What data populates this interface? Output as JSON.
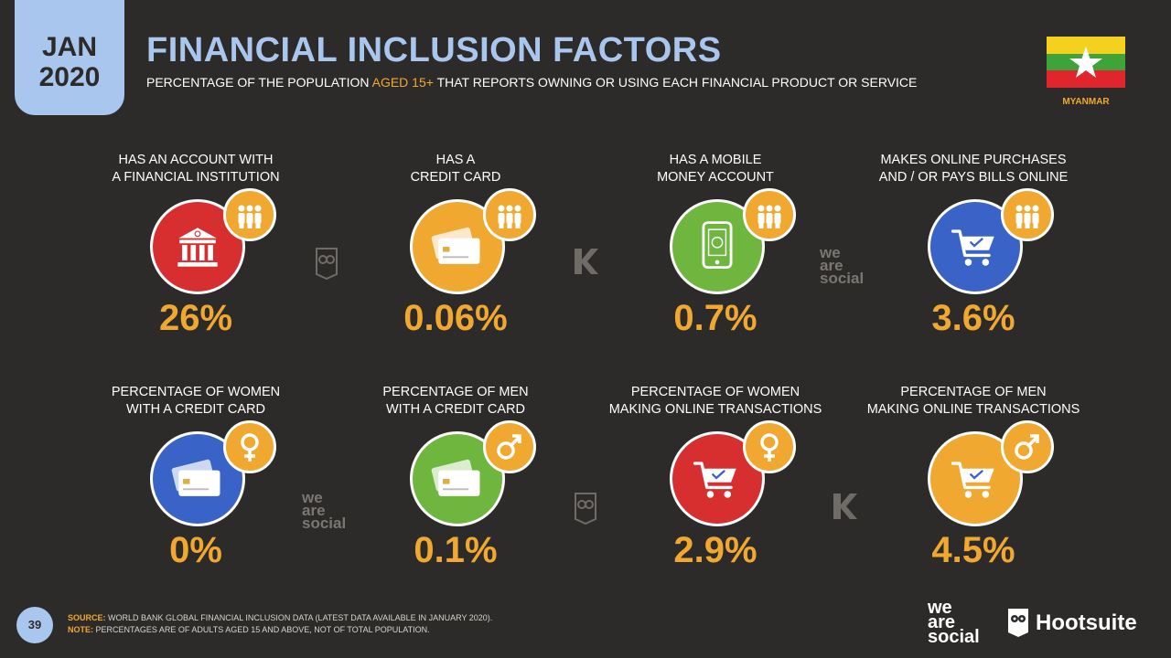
{
  "header": {
    "month": "JAN",
    "year": "2020",
    "title": "FINANCIAL INCLUSION FACTORS",
    "subtitle_pre": "PERCENTAGE OF THE POPULATION ",
    "subtitle_highlight": "AGED 15+",
    "subtitle_post": " THAT REPORTS OWNING OR USING EACH FINANCIAL PRODUCT OR SERVICE",
    "country": "MYANMAR"
  },
  "colors": {
    "background": "#2d2b29",
    "accent_blue": "#a9c6ef",
    "accent_orange": "#f0a830",
    "red": "#d72f2f",
    "orange": "#f0a830",
    "green": "#6fb63f",
    "blue": "#3a63c7"
  },
  "cards": [
    {
      "line1": "HAS AN ACCOUNT WITH",
      "line2": "A FINANCIAL INSTITUTION",
      "value": "26%",
      "icon": "bank-icon",
      "badge": "people-icon",
      "color": "#d72f2f"
    },
    {
      "line1": "HAS A",
      "line2": "CREDIT CARD",
      "value": "0.06%",
      "icon": "credit-card-icon",
      "badge": "people-icon",
      "color": "#f0a830"
    },
    {
      "line1": "HAS A MOBILE",
      "line2": "MONEY ACCOUNT",
      "value": "0.7%",
      "icon": "mobile-money-icon",
      "badge": "people-icon",
      "color": "#6fb63f"
    },
    {
      "line1": "MAKES ONLINE PURCHASES",
      "line2": "AND / OR PAYS BILLS ONLINE",
      "value": "3.6%",
      "icon": "shopping-cart-icon",
      "badge": "people-icon",
      "color": "#3a63c7"
    },
    {
      "line1": "PERCENTAGE OF WOMEN",
      "line2": "WITH A CREDIT CARD",
      "value": "0%",
      "icon": "credit-card-icon",
      "badge": "female-icon",
      "color": "#3a63c7"
    },
    {
      "line1": "PERCENTAGE OF MEN",
      "line2": "WITH A CREDIT CARD",
      "value": "0.1%",
      "icon": "credit-card-icon",
      "badge": "male-icon",
      "color": "#6fb63f"
    },
    {
      "line1": "PERCENTAGE OF WOMEN",
      "line2": "MAKING ONLINE TRANSACTIONS",
      "value": "2.9%",
      "icon": "shopping-cart-icon",
      "badge": "female-icon",
      "color": "#d72f2f"
    },
    {
      "line1": "PERCENTAGE OF MEN",
      "line2": "MAKING ONLINE TRANSACTIONS",
      "value": "4.5%",
      "icon": "shopping-cart-icon",
      "badge": "male-icon",
      "color": "#f0a830"
    }
  ],
  "footer": {
    "page": "39",
    "source_label": "SOURCE:",
    "source_text": " WORLD BANK GLOBAL FINANCIAL INCLUSION DATA (LATEST DATA AVAILABLE IN JANUARY 2020).",
    "note_label": "NOTE:",
    "note_text": " PERCENTAGES ARE OF ADULTS AGED 15 AND ABOVE, NOT OF TOTAL POPULATION.",
    "logo_was": [
      "we",
      "are",
      "social"
    ],
    "logo_hootsuite": "Hootsuite"
  }
}
